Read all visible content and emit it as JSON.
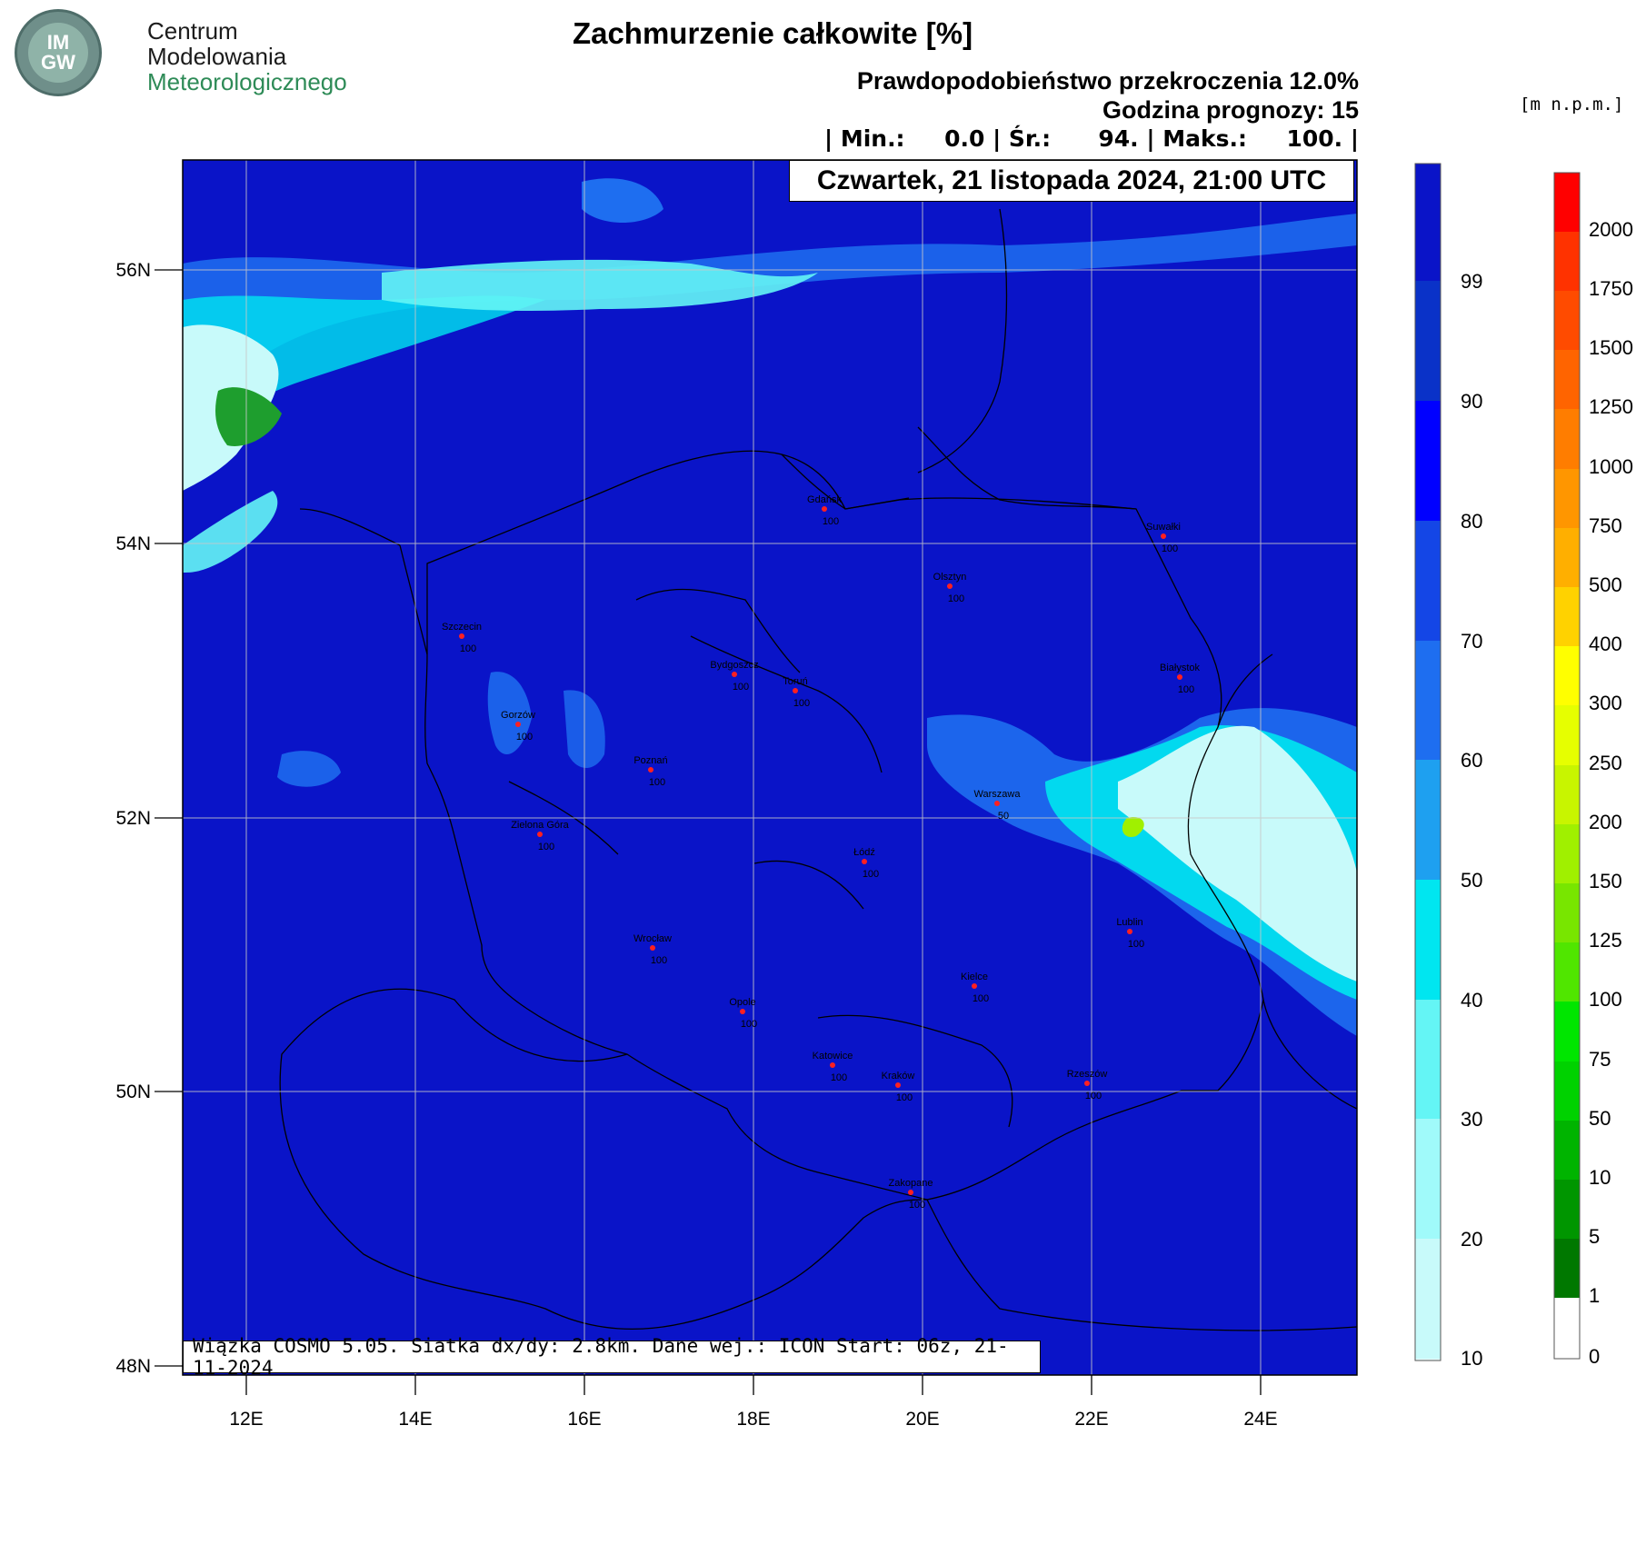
{
  "logo": {
    "badge_text": "IM GW",
    "line1": "Centrum",
    "line2": "Modelowania",
    "line3": "Meteorologicznego",
    "badge_color": "#6f8f8a",
    "text_color": "#2e8b57"
  },
  "header": {
    "title": "Zachmurzenie całkowite [%]",
    "probability": "Prawdopodobieństwo przekroczenia 12.0%",
    "forecast_hour": "Godzina prognozy: 15",
    "stats": "| Min.:     0.0 | Śr.:      94. | Maks.:     100. |",
    "date": "Czwartek, 21 listopada 2024, 21:00 UTC"
  },
  "footer": {
    "model_info": "Wiązka COSMO 5.05. Siatka dx/dy: 2.8km. Dane wej.: ICON Start: 06z, 21-11-2024"
  },
  "map": {
    "lat_labels": [
      "56N",
      "54N",
      "52N",
      "50N",
      "48N"
    ],
    "lon_labels": [
      "12E",
      "14E",
      "16E",
      "18E",
      "20E",
      "22E",
      "24E"
    ],
    "background_color": "#0a14c8",
    "cities": [
      {
        "name": "Gdańsk",
        "value": "100"
      },
      {
        "name": "Suwałki",
        "value": "100"
      },
      {
        "name": "Olsztyn",
        "value": "100"
      },
      {
        "name": "Szczecin",
        "value": "100"
      },
      {
        "name": "Bydgoszcz",
        "value": "100"
      },
      {
        "name": "Toruń",
        "value": "100"
      },
      {
        "name": "Białystok",
        "value": "100"
      },
      {
        "name": "Gorzów",
        "value": "100"
      },
      {
        "name": "Poznań",
        "value": "100"
      },
      {
        "name": "Warszawa",
        "value": "50"
      },
      {
        "name": "Zielona Góra",
        "value": "100"
      },
      {
        "name": "Łódź",
        "value": "100"
      },
      {
        "name": "Lublin",
        "value": "100"
      },
      {
        "name": "Wrocław",
        "value": "100"
      },
      {
        "name": "Kielce",
        "value": "100"
      },
      {
        "name": "Opole",
        "value": "100"
      },
      {
        "name": "Katowice",
        "value": "100"
      },
      {
        "name": "Kraków",
        "value": "100"
      },
      {
        "name": "Rzeszów",
        "value": "100"
      },
      {
        "name": "Zakopane",
        "value": "100"
      }
    ]
  },
  "cloud_scale": {
    "labels": [
      "99",
      "90",
      "80",
      "70",
      "60",
      "50",
      "40",
      "30",
      "20",
      "10"
    ],
    "colors": [
      "#0a14c8",
      "#0a32c8",
      "#0000ff",
      "#1446e6",
      "#1e6ef0",
      "#1ea0f0",
      "#00e6f0",
      "#64f5f5",
      "#a0fafa",
      "#c8fafa",
      "#e6fcfc"
    ]
  },
  "terrain_scale": {
    "units": "[m n.p.m.]",
    "labels": [
      "2000",
      "1750",
      "1500",
      "1250",
      "1000",
      "750",
      "500",
      "400",
      "300",
      "250",
      "200",
      "150",
      "125",
      "100",
      "75",
      "50",
      "10",
      "5",
      "1",
      "0"
    ],
    "colors": [
      "#ff0000",
      "#ff3200",
      "#ff4b00",
      "#ff6400",
      "#ff7d00",
      "#ff9600",
      "#ffaf00",
      "#ffd200",
      "#ffff00",
      "#e6ff00",
      "#c8f500",
      "#a0f000",
      "#78e600",
      "#50e600",
      "#00e600",
      "#00d200",
      "#00b400",
      "#009600",
      "#007800",
      "#006400",
      "#ffffff"
    ]
  }
}
